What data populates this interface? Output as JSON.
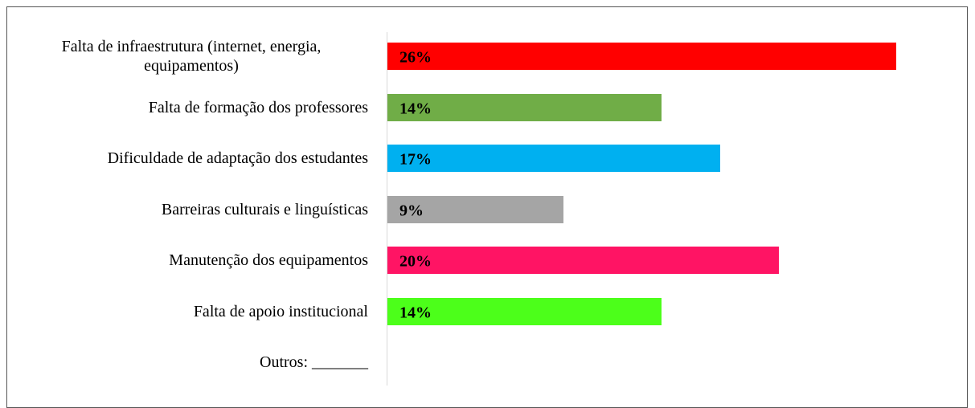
{
  "chart_data": {
    "type": "bar",
    "orientation": "horizontal",
    "categories": [
      "Falta de infraestrutura (internet, energia, equipamentos)",
      "Falta de formação dos professores",
      "Dificuldade de adaptação dos estudantes",
      "Barreiras culturais e linguísticas",
      "Manutenção dos equipamentos",
      "Falta de apoio institucional",
      "Outros: _______"
    ],
    "values": [
      26,
      14,
      17,
      9,
      20,
      14,
      null
    ],
    "value_labels": [
      "26%",
      "14%",
      "17%",
      "9%",
      "20%",
      "14%",
      null
    ],
    "colors": [
      "#ff0000",
      "#70ad47",
      "#00b0f0",
      "#a5a5a5",
      "#ff1464",
      "#4cff1a",
      null
    ]
  }
}
